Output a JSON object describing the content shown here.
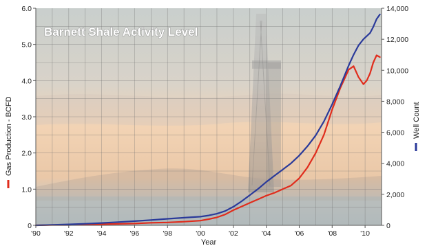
{
  "chart_data": {
    "type": "line",
    "title": "Barnett Shale Activity Level",
    "xlabel": "Year",
    "ylabel_left": "Gas Production - BCFD",
    "ylabel_right": "Well Count",
    "x_ticks": [
      "'90",
      "'92",
      "'94",
      "'96",
      "'98",
      "'00",
      "'02",
      "'04",
      "'06",
      "'08",
      "'10"
    ],
    "y_left_ticks": [
      "0",
      "1.0",
      "2.0",
      "3.0",
      "4.0",
      "5.0",
      "6.0"
    ],
    "y_right_ticks": [
      "0",
      "2,000",
      "4,000",
      "6,000",
      "8,000",
      "10,000",
      "12,000",
      "14,000"
    ],
    "xlim": [
      1990,
      2011
    ],
    "ylim_left": [
      0,
      6
    ],
    "ylim_right": [
      0,
      14000
    ],
    "grid": true,
    "series": [
      {
        "name": "Gas Production - BCFD",
        "axis": "left",
        "color": "#e02c1c",
        "x": [
          1990,
          1991,
          1992,
          1993,
          1994,
          1995,
          1996,
          1997,
          1998,
          1999,
          2000,
          2000.5,
          2001,
          2001.5,
          2002,
          2002.5,
          2003,
          2003.5,
          2004,
          2004.5,
          2005,
          2005.5,
          2006,
          2006.5,
          2007,
          2007.5,
          2008,
          2008.5,
          2009,
          2009.3,
          2009.6,
          2009.9,
          2010.1,
          2010.3,
          2010.5,
          2010.7,
          2010.9
        ],
        "values": [
          0,
          0.01,
          0.01,
          0.02,
          0.03,
          0.04,
          0.05,
          0.07,
          0.08,
          0.1,
          0.13,
          0.17,
          0.22,
          0.3,
          0.42,
          0.52,
          0.62,
          0.72,
          0.82,
          0.9,
          1.0,
          1.1,
          1.3,
          1.6,
          2.0,
          2.5,
          3.2,
          3.8,
          4.3,
          4.4,
          4.1,
          3.9,
          4.0,
          4.2,
          4.5,
          4.7,
          4.65
        ]
      },
      {
        "name": "Well Count",
        "axis": "right",
        "color": "#2a3a9a",
        "x": [
          1990,
          1991,
          1992,
          1993,
          1994,
          1995,
          1996,
          1997,
          1998,
          1999,
          2000,
          2000.5,
          2001,
          2001.5,
          2002,
          2002.5,
          2003,
          2003.5,
          2004,
          2004.5,
          2005,
          2005.5,
          2006,
          2006.5,
          2007,
          2007.5,
          2008,
          2008.5,
          2009,
          2009.3,
          2009.6,
          2009.9,
          2010.1,
          2010.3,
          2010.5,
          2010.7,
          2010.9
        ],
        "values": [
          0,
          30,
          60,
          100,
          150,
          210,
          270,
          340,
          420,
          490,
          560,
          640,
          750,
          920,
          1200,
          1550,
          1950,
          2350,
          2800,
          3200,
          3600,
          4000,
          4500,
          5100,
          5800,
          6700,
          7800,
          9000,
          10300,
          11000,
          11600,
          12000,
          12200,
          12400,
          12800,
          13300,
          13600
        ]
      }
    ]
  }
}
